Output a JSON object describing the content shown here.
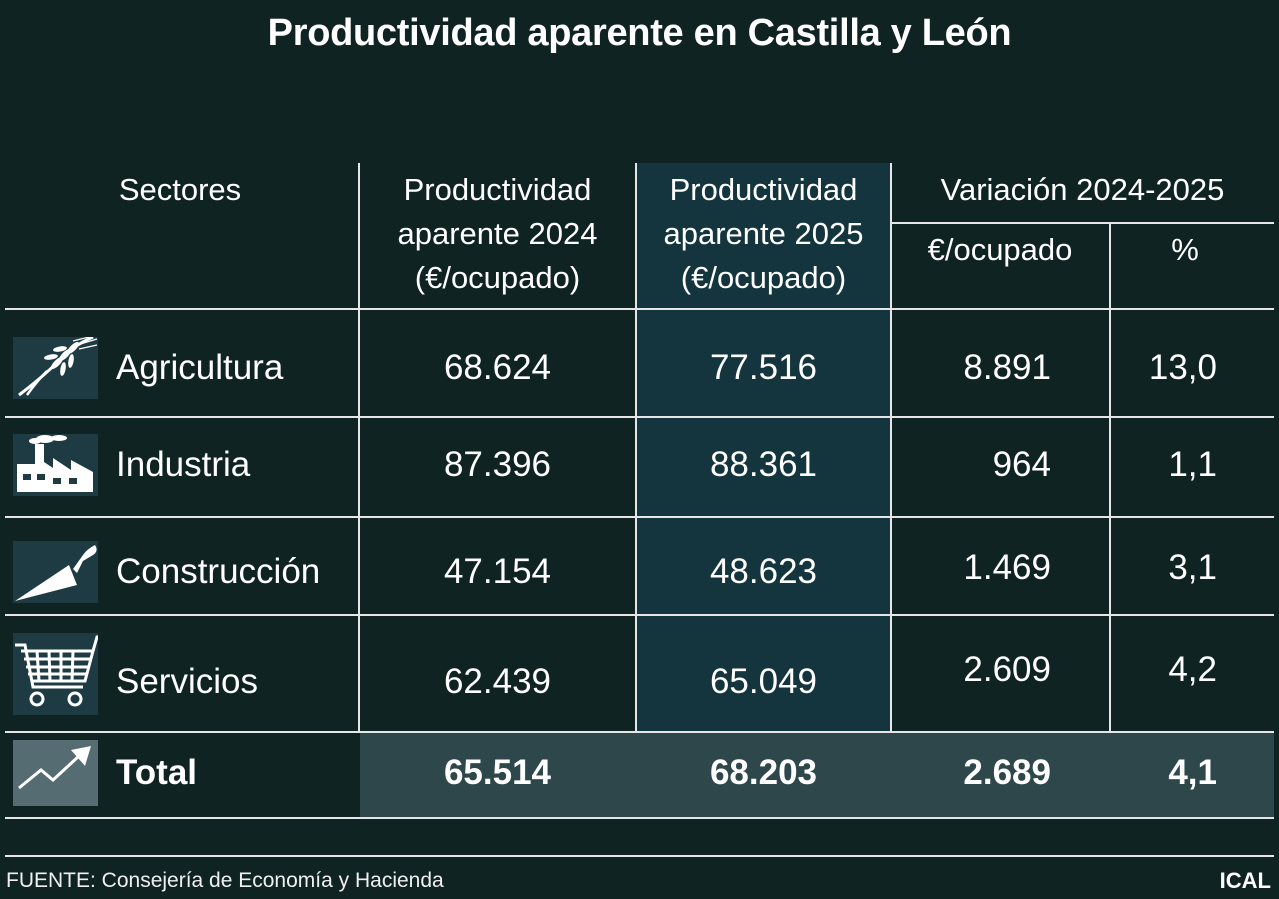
{
  "title": "Productividad aparente en Castilla y León",
  "headers": {
    "sectores": "Sectores",
    "p2024": [
      "Productividad",
      "aparente 2024",
      "(€/ocupado)"
    ],
    "p2025": [
      "Productividad",
      "aparente 2025",
      "(€/ocupado)"
    ],
    "variacion": "Variación 2024-2025",
    "eur_ocupado": "€/ocupado",
    "pct": "%"
  },
  "rows": [
    {
      "sector": "Agricultura",
      "icon": "wheat-icon",
      "p2024": "68.624",
      "p2025": "77.516",
      "var_eur": "8.891",
      "var_pct": "13,0"
    },
    {
      "sector": "Industria",
      "icon": "factory-icon",
      "p2024": "87.396",
      "p2025": "88.361",
      "var_eur": "964",
      "var_pct": "1,1"
    },
    {
      "sector": "Construcción",
      "icon": "trowel-icon",
      "p2024": "47.154",
      "p2025": "48.623",
      "var_eur": "1.469",
      "var_pct": "3,1"
    },
    {
      "sector": "Servicios",
      "icon": "shopping-cart-icon",
      "p2024": "62.439",
      "p2025": "65.049",
      "var_eur": "2.609",
      "var_pct": "4,2"
    }
  ],
  "total": {
    "sector": "Total",
    "icon": "trend-up-icon",
    "p2024": "65.514",
    "p2025": "68.203",
    "var_eur": "2.689",
    "var_pct": "4,1"
  },
  "footer": {
    "source": "FUENTE: Consejería de Economía y Hacienda",
    "brand": "ICAL"
  },
  "colors": {
    "background": "#0f2322",
    "highlight_column": "#14353d",
    "total_band": "#2d474a",
    "icon_box": "#2a4a55",
    "rules": "#e6e6e6"
  }
}
